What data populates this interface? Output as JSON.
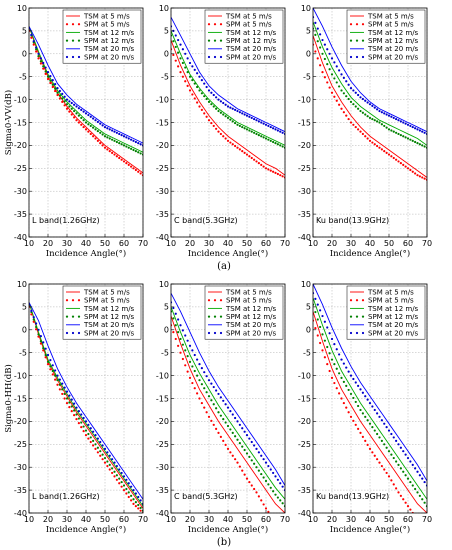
{
  "figure": {
    "caption_a": "(a)",
    "caption_b": "(b)",
    "caption_a_bold": "a",
    "caption_b_bold": "b"
  },
  "chart_data": [
    {
      "type": "line",
      "row": "a",
      "panel_label": "L band(1.26GHz)",
      "xlabel": "Incidence Angle(°)",
      "ylabel": "Sigma0-VV(dB)",
      "xlim": [
        10,
        70
      ],
      "ylim": [
        -40,
        10
      ],
      "grid": true,
      "legend": "top-right",
      "xticks": [
        10,
        20,
        30,
        40,
        50,
        60,
        70
      ],
      "yticks": [
        10,
        5,
        0,
        -5,
        -10,
        -15,
        -20,
        -25,
        -30,
        -35,
        -40
      ],
      "x": [
        10,
        15,
        20,
        25,
        30,
        35,
        40,
        45,
        50,
        55,
        60,
        65,
        70
      ],
      "series": [
        {
          "name": "TSM at 5 m/s",
          "style": "solid",
          "color": "#ff0000",
          "values": [
            6,
            0,
            -5,
            -8.5,
            -11.5,
            -14,
            -16,
            -18,
            -20,
            -21.5,
            -23,
            -24.5,
            -26
          ]
        },
        {
          "name": "SPM at 5 m/s",
          "style": "dotted",
          "color": "#ff0000",
          "values": [
            5,
            -1,
            -5.5,
            -9,
            -12,
            -14.5,
            -16.5,
            -18.5,
            -20.5,
            -22,
            -23.5,
            -25,
            -26.5
          ]
        },
        {
          "name": "TSM at 12 m/s",
          "style": "solid",
          "color": "#00aa00",
          "values": [
            6,
            0.5,
            -4.5,
            -8,
            -10.5,
            -12.5,
            -14.5,
            -16,
            -17.5,
            -18.5,
            -19.5,
            -20.5,
            -21.5
          ]
        },
        {
          "name": "SPM at 12 m/s",
          "style": "dotted",
          "color": "#008000",
          "values": [
            5.5,
            -0.5,
            -5,
            -8.5,
            -11,
            -13,
            -15,
            -16.5,
            -18,
            -19,
            -20,
            -21,
            -22
          ]
        },
        {
          "name": "TSM at 20 m/s",
          "style": "solid",
          "color": "#0000ff",
          "values": [
            6,
            2,
            -2.5,
            -6.5,
            -9,
            -11,
            -12.5,
            -14,
            -15.5,
            -16.5,
            -17.5,
            -18.5,
            -19.5
          ]
        },
        {
          "name": "SPM at 20 m/s",
          "style": "dotted",
          "color": "#0000cc",
          "values": [
            5.5,
            0,
            -4,
            -7.5,
            -10,
            -11.5,
            -13,
            -14.5,
            -16,
            -17,
            -18,
            -19,
            -20
          ]
        }
      ]
    },
    {
      "type": "line",
      "row": "a",
      "panel_label": "C band(5.3GHz)",
      "xlabel": "Incidence Angle(°)",
      "ylabel": "",
      "xlim": [
        10,
        70
      ],
      "ylim": [
        -40,
        10
      ],
      "grid": true,
      "legend": "top-right",
      "xticks": [
        10,
        20,
        30,
        40,
        50,
        60,
        70
      ],
      "yticks": [
        10,
        5,
        0,
        -5,
        -10,
        -15,
        -20,
        -25,
        -30,
        -35,
        -40
      ],
      "x": [
        10,
        15,
        20,
        25,
        30,
        35,
        40,
        45,
        50,
        55,
        60,
        65,
        70
      ],
      "series": [
        {
          "name": "TSM at 5 m/s",
          "style": "solid",
          "color": "#ff0000",
          "values": [
            3,
            -2.5,
            -7,
            -10.5,
            -13.5,
            -16,
            -18,
            -19.5,
            -21,
            -22.5,
            -24,
            -25,
            -26.5
          ]
        },
        {
          "name": "SPM at 5 m/s",
          "style": "dotted",
          "color": "#ff0000",
          "values": [
            1,
            -4,
            -8,
            -11.5,
            -14.5,
            -17,
            -19,
            -20.5,
            -22,
            -23.5,
            -25,
            -26,
            -27
          ]
        },
        {
          "name": "TSM at 12 m/s",
          "style": "solid",
          "color": "#00aa00",
          "values": [
            5,
            0,
            -4.5,
            -7.5,
            -10,
            -12,
            -13.5,
            -15,
            -16,
            -17,
            -18,
            -19,
            -20
          ]
        },
        {
          "name": "SPM at 12 m/s",
          "style": "dotted",
          "color": "#008000",
          "values": [
            4,
            -1,
            -5,
            -8,
            -10.5,
            -12.5,
            -14,
            -15.5,
            -16.5,
            -17.5,
            -18.5,
            -19.5,
            -20.5
          ]
        },
        {
          "name": "TSM at 20 m/s",
          "style": "solid",
          "color": "#0000ff",
          "values": [
            8,
            4,
            0,
            -4,
            -7,
            -9,
            -10.5,
            -12,
            -13,
            -14,
            -15,
            -16,
            -17
          ]
        },
        {
          "name": "SPM at 20 m/s",
          "style": "dotted",
          "color": "#0000cc",
          "values": [
            6,
            2,
            -2,
            -5,
            -8,
            -10,
            -11.5,
            -12.5,
            -13.5,
            -14.5,
            -15.5,
            -16.5,
            -17.5
          ]
        }
      ]
    },
    {
      "type": "line",
      "row": "a",
      "panel_label": "Ku band(13.9GHz)",
      "xlabel": "Incidence Angle(°)",
      "ylabel": "",
      "xlim": [
        10,
        70
      ],
      "ylim": [
        -40,
        10
      ],
      "grid": true,
      "legend": "top-right",
      "xticks": [
        10,
        20,
        30,
        40,
        50,
        60,
        70
      ],
      "yticks": [
        10,
        5,
        0,
        -5,
        -10,
        -15,
        -20,
        -25,
        -30,
        -35,
        -40
      ],
      "x": [
        10,
        15,
        20,
        25,
        30,
        35,
        40,
        45,
        50,
        55,
        60,
        65,
        70
      ],
      "series": [
        {
          "name": "TSM at 5 m/s",
          "style": "solid",
          "color": "#ff0000",
          "values": [
            4,
            -2,
            -7,
            -10.5,
            -13.5,
            -16,
            -18,
            -19.5,
            -21,
            -22.5,
            -24,
            -25.5,
            -27
          ]
        },
        {
          "name": "SPM at 5 m/s",
          "style": "dotted",
          "color": "#ff0000",
          "values": [
            2,
            -4,
            -8.5,
            -12,
            -15,
            -17,
            -19,
            -20.5,
            -22,
            -23.5,
            -25,
            -26.5,
            -27.5
          ]
        },
        {
          "name": "TSM at 12 m/s",
          "style": "solid",
          "color": "#00aa00",
          "values": [
            7,
            1.5,
            -3,
            -6.5,
            -9.5,
            -11.5,
            -13,
            -14.5,
            -15.5,
            -16.5,
            -17.5,
            -18.5,
            -20
          ]
        },
        {
          "name": "SPM at 12 m/s",
          "style": "dotted",
          "color": "#008000",
          "values": [
            5.5,
            0,
            -4.5,
            -8,
            -10.5,
            -12.5,
            -14,
            -15,
            -16.5,
            -17.5,
            -18.5,
            -19.5,
            -20.5
          ]
        },
        {
          "name": "TSM at 20 m/s",
          "style": "solid",
          "color": "#0000ff",
          "values": [
            10,
            6,
            1.5,
            -2.5,
            -6,
            -8.5,
            -10.5,
            -12,
            -13,
            -14,
            -15,
            -16,
            -17
          ]
        },
        {
          "name": "SPM at 20 m/s",
          "style": "dotted",
          "color": "#0000cc",
          "values": [
            8,
            3,
            -1,
            -4.5,
            -7.5,
            -9.5,
            -11,
            -12.5,
            -13.5,
            -14.5,
            -15.5,
            -16.5,
            -17.5
          ]
        }
      ]
    },
    {
      "type": "line",
      "row": "b",
      "panel_label": "L band(1.26GHz)",
      "xlabel": "Incidence Angle(°)",
      "ylabel": "Sigma0-HH(dB)",
      "xlim": [
        10,
        70
      ],
      "ylim": [
        -40,
        10
      ],
      "grid": true,
      "legend": "top-right",
      "xticks": [
        10,
        20,
        30,
        40,
        50,
        60,
        70
      ],
      "yticks": [
        10,
        5,
        0,
        -5,
        -10,
        -15,
        -20,
        -25,
        -30,
        -35,
        -40
      ],
      "x": [
        10,
        15,
        20,
        25,
        30,
        35,
        40,
        45,
        50,
        55,
        60,
        65,
        70
      ],
      "series": [
        {
          "name": "TSM at 5 m/s",
          "style": "solid",
          "color": "#ff0000",
          "values": [
            6,
            -1,
            -7,
            -11,
            -14.5,
            -18,
            -21,
            -24,
            -27,
            -30,
            -33,
            -36,
            -39
          ]
        },
        {
          "name": "SPM at 5 m/s",
          "style": "dotted",
          "color": "#ff0000",
          "values": [
            5,
            -1.5,
            -7.5,
            -12,
            -16,
            -19.5,
            -23,
            -26,
            -29,
            -32,
            -35,
            -38,
            -40
          ]
        },
        {
          "name": "TSM at 12 m/s",
          "style": "solid",
          "color": "#00aa00",
          "values": [
            6,
            -0.5,
            -6.5,
            -10.5,
            -14,
            -17.5,
            -20.5,
            -23.5,
            -26.5,
            -29.5,
            -32.5,
            -35.5,
            -38.5
          ]
        },
        {
          "name": "SPM at 12 m/s",
          "style": "dotted",
          "color": "#008000",
          "values": [
            5.5,
            -1,
            -7,
            -11,
            -15,
            -18.5,
            -22,
            -25,
            -28,
            -31,
            -34,
            -37,
            -39.5
          ]
        },
        {
          "name": "TSM at 20 m/s",
          "style": "solid",
          "color": "#0000ff",
          "values": [
            6,
            2,
            -3.5,
            -8.5,
            -12.5,
            -16,
            -19,
            -22,
            -25,
            -28,
            -31,
            -34,
            -37
          ]
        },
        {
          "name": "SPM at 20 m/s",
          "style": "dotted",
          "color": "#0000cc",
          "values": [
            5.5,
            0,
            -5.5,
            -10,
            -13.5,
            -17,
            -20,
            -23,
            -26,
            -29,
            -32,
            -35,
            -38
          ]
        }
      ]
    },
    {
      "type": "line",
      "row": "b",
      "panel_label": "C band(5.3GHz)",
      "xlabel": "Incidence Angle(°)",
      "ylabel": "",
      "xlim": [
        10,
        70
      ],
      "ylim": [
        -40,
        10
      ],
      "grid": true,
      "legend": "top-right",
      "xticks": [
        10,
        20,
        30,
        40,
        50,
        60,
        70
      ],
      "yticks": [
        10,
        5,
        0,
        -5,
        -10,
        -15,
        -20,
        -25,
        -30,
        -35,
        -40
      ],
      "x": [
        10,
        15,
        20,
        25,
        30,
        35,
        40,
        45,
        50,
        55,
        60,
        65,
        70
      ],
      "series": [
        {
          "name": "TSM at 5 m/s",
          "style": "solid",
          "color": "#ff0000",
          "values": [
            3,
            -3,
            -8.5,
            -13,
            -16.5,
            -20,
            -23,
            -26,
            -29,
            -32,
            -35,
            -38,
            -40
          ]
        },
        {
          "name": "SPM at 5 m/s",
          "style": "dotted",
          "color": "#ff0000",
          "values": [
            1,
            -5,
            -10.5,
            -15,
            -19,
            -22.5,
            -26,
            -29,
            -32.5,
            -35.5,
            -39,
            -42,
            -45
          ]
        },
        {
          "name": "TSM at 12 m/s",
          "style": "solid",
          "color": "#00aa00",
          "values": [
            5,
            -0.5,
            -5.5,
            -9.5,
            -13,
            -16.5,
            -19.5,
            -22.5,
            -25.5,
            -28.5,
            -31.5,
            -34.5,
            -37
          ]
        },
        {
          "name": "SPM at 12 m/s",
          "style": "dotted",
          "color": "#008000",
          "values": [
            4,
            -2,
            -7,
            -11,
            -14.5,
            -18,
            -21,
            -24,
            -27,
            -30,
            -33,
            -36,
            -38.5
          ]
        },
        {
          "name": "TSM at 20 m/s",
          "style": "solid",
          "color": "#0000ff",
          "values": [
            8,
            4,
            -0.5,
            -5,
            -9,
            -12.5,
            -15.5,
            -18.5,
            -21.5,
            -24.5,
            -27.5,
            -30.5,
            -34
          ]
        },
        {
          "name": "SPM at 20 m/s",
          "style": "dotted",
          "color": "#0000cc",
          "values": [
            6,
            1,
            -3.5,
            -7.5,
            -11,
            -14,
            -17,
            -20,
            -23,
            -26,
            -29,
            -32,
            -35
          ]
        }
      ]
    },
    {
      "type": "line",
      "row": "b",
      "panel_label": "Ku band(13.9GHz)",
      "xlabel": "Incidence Angle(°)",
      "ylabel": "",
      "xlim": [
        10,
        70
      ],
      "ylim": [
        -40,
        10
      ],
      "grid": true,
      "legend": "top-right",
      "xticks": [
        10,
        20,
        30,
        40,
        50,
        60,
        70
      ],
      "yticks": [
        10,
        5,
        0,
        -5,
        -10,
        -15,
        -20,
        -25,
        -30,
        -35,
        -40
      ],
      "x": [
        10,
        15,
        20,
        25,
        30,
        35,
        40,
        45,
        50,
        55,
        60,
        65,
        70
      ],
      "series": [
        {
          "name": "TSM at 5 m/s",
          "style": "solid",
          "color": "#ff0000",
          "values": [
            4,
            -2.5,
            -8.5,
            -13,
            -16.5,
            -20,
            -23,
            -26,
            -29,
            -32,
            -35,
            -38,
            -40
          ]
        },
        {
          "name": "SPM at 5 m/s",
          "style": "dotted",
          "color": "#ff0000",
          "values": [
            2,
            -4.5,
            -10.5,
            -15,
            -19,
            -22.5,
            -26,
            -29,
            -32,
            -35.5,
            -38.5,
            -41.5,
            -44
          ]
        },
        {
          "name": "TSM at 12 m/s",
          "style": "solid",
          "color": "#00aa00",
          "values": [
            7,
            1,
            -4.5,
            -9,
            -12.5,
            -16,
            -19,
            -22,
            -25,
            -28,
            -31,
            -34,
            -37
          ]
        },
        {
          "name": "SPM at 12 m/s",
          "style": "dotted",
          "color": "#008000",
          "values": [
            5.5,
            -1,
            -6.5,
            -10.5,
            -14,
            -17.5,
            -20.5,
            -23.5,
            -26.5,
            -29.5,
            -32.5,
            -35.5,
            -38.5
          ]
        },
        {
          "name": "TSM at 20 m/s",
          "style": "solid",
          "color": "#0000ff",
          "values": [
            10,
            5.5,
            0.5,
            -4,
            -8,
            -11.5,
            -14.5,
            -17.5,
            -20.5,
            -23.5,
            -26.5,
            -29.5,
            -33
          ]
        },
        {
          "name": "SPM at 20 m/s",
          "style": "dotted",
          "color": "#0000cc",
          "values": [
            8,
            3,
            -2,
            -6.5,
            -10,
            -13,
            -16,
            -19,
            -22,
            -25,
            -28,
            -31,
            -34
          ]
        }
      ]
    }
  ]
}
